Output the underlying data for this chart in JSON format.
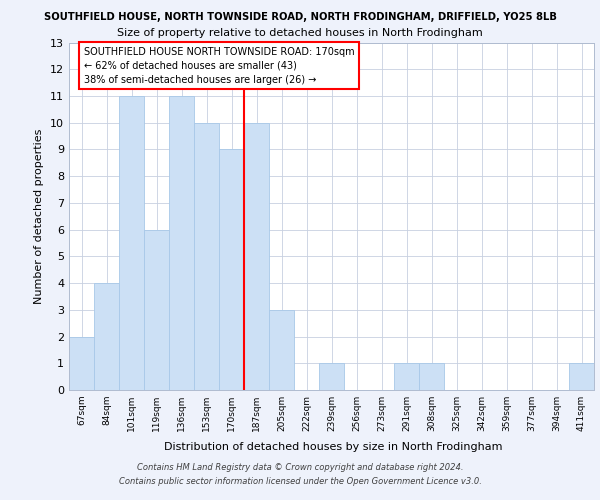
{
  "title_line1": "SOUTHFIELD HOUSE, NORTH TOWNSIDE ROAD, NORTH FRODINGHAM, DRIFFIELD, YO25 8LB",
  "title_line2": "Size of property relative to detached houses in North Frodingham",
  "xlabel": "Distribution of detached houses by size in North Frodingham",
  "ylabel": "Number of detached properties",
  "categories": [
    "67sqm",
    "84sqm",
    "101sqm",
    "119sqm",
    "136sqm",
    "153sqm",
    "170sqm",
    "187sqm",
    "205sqm",
    "222sqm",
    "239sqm",
    "256sqm",
    "273sqm",
    "291sqm",
    "308sqm",
    "325sqm",
    "342sqm",
    "359sqm",
    "377sqm",
    "394sqm",
    "411sqm"
  ],
  "values": [
    2,
    4,
    11,
    6,
    11,
    10,
    9,
    10,
    3,
    0,
    1,
    0,
    0,
    1,
    1,
    0,
    0,
    0,
    0,
    0,
    1
  ],
  "bar_color": "#cce0f5",
  "bar_edge_color": "#a8c8e8",
  "red_line_index": 6,
  "annotation_line1": "SOUTHFIELD HOUSE NORTH TOWNSIDE ROAD: 170sqm",
  "annotation_line2": "← 62% of detached houses are smaller (43)",
  "annotation_line3": "38% of semi-detached houses are larger (26) →",
  "ylim": [
    0,
    13
  ],
  "yticks": [
    0,
    1,
    2,
    3,
    4,
    5,
    6,
    7,
    8,
    9,
    10,
    11,
    12,
    13
  ],
  "footer_line1": "Contains HM Land Registry data © Crown copyright and database right 2024.",
  "footer_line2": "Contains public sector information licensed under the Open Government Licence v3.0.",
  "background_color": "#eef2fb",
  "plot_background": "#ffffff",
  "grid_color": "#c8d0e0"
}
